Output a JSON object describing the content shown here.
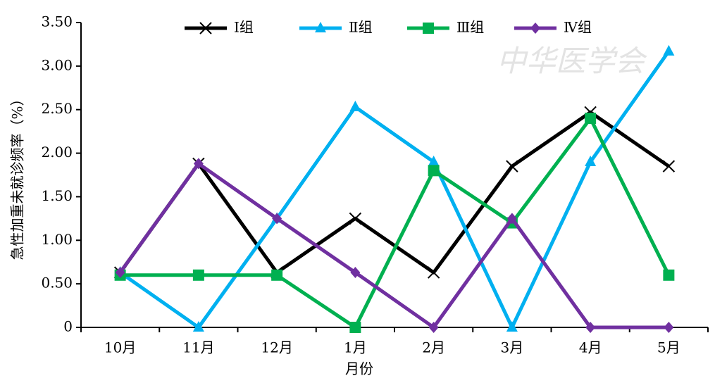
{
  "chart_data": {
    "type": "line",
    "watermark": "中华医学会",
    "y_label": "急性加重未就诊频率（%）",
    "x_label": "月份",
    "categories": [
      "10月",
      "11月",
      "12月",
      "1月",
      "2月",
      "3月",
      "4月",
      "5月"
    ],
    "series": [
      {
        "name": "Ⅰ组",
        "color": "#000000",
        "marker": "x",
        "values": [
          0.63,
          1.88,
          0.63,
          1.25,
          0.63,
          1.85,
          2.47,
          1.85
        ]
      },
      {
        "name": "Ⅱ组",
        "color": "#00b0f0",
        "marker": "triangle",
        "values": [
          0.63,
          0,
          1.25,
          2.53,
          1.9,
          0,
          1.9,
          3.17
        ]
      },
      {
        "name": "Ⅲ组",
        "color": "#00b050",
        "marker": "square",
        "values": [
          0.6,
          0.6,
          0.6,
          0,
          1.8,
          1.2,
          2.4,
          0.6
        ]
      },
      {
        "name": "Ⅳ组",
        "color": "#7030a0",
        "marker": "diamond",
        "values": [
          0.63,
          1.88,
          1.25,
          0.63,
          0,
          1.25,
          0,
          0
        ]
      }
    ],
    "ylim": [
      0,
      3.5
    ],
    "yticks": [
      0,
      {
        "value": 0.5,
        "label": "0.50"
      },
      {
        "value": 1,
        "label": "1.00"
      },
      {
        "value": 1.5,
        "label": "1.50"
      },
      {
        "value": 2,
        "label": "2.00"
      },
      {
        "value": 2.5,
        "label": "2.50"
      },
      {
        "value": 3,
        "label": "3.00"
      },
      {
        "value": 3.5,
        "label": "3.50"
      }
    ],
    "legend": "top",
    "grid": false
  }
}
